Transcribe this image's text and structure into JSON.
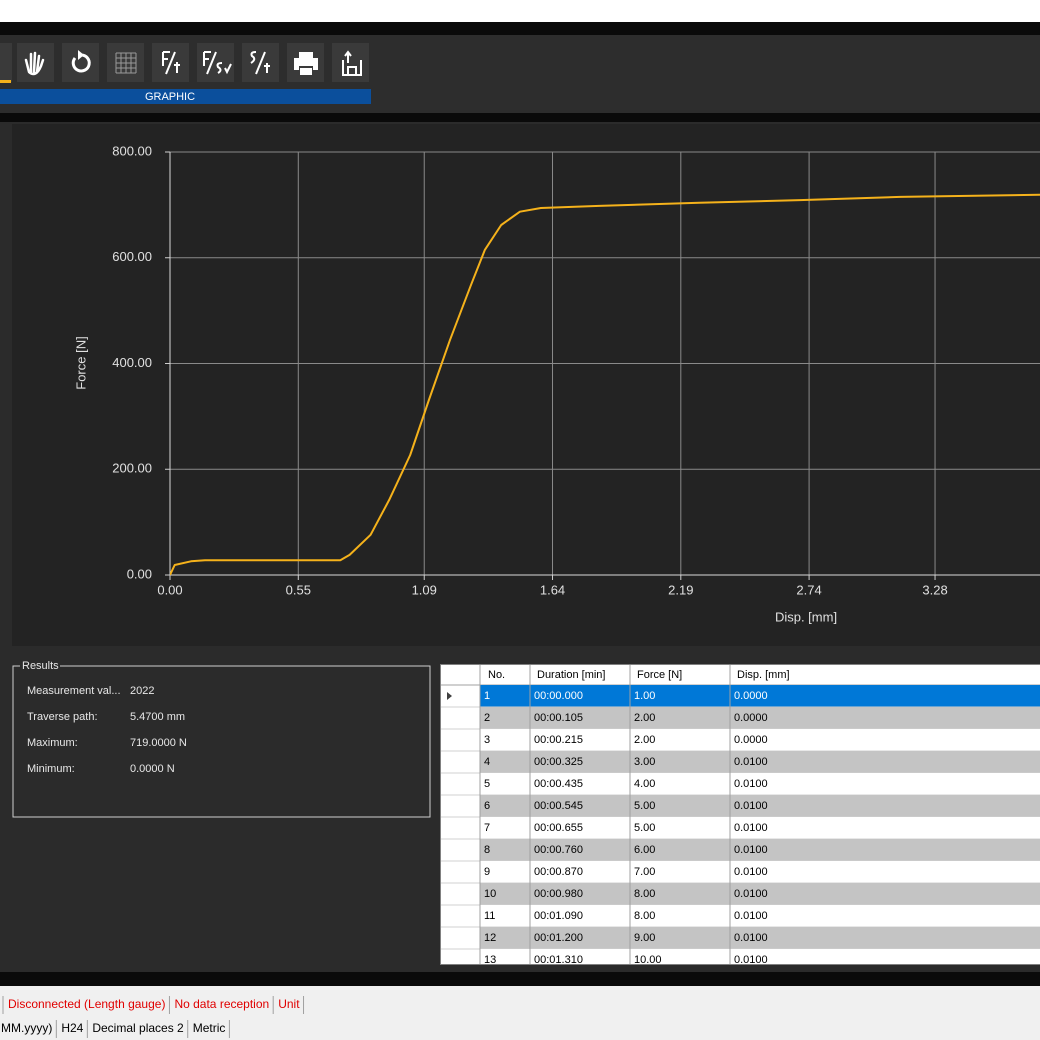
{
  "toolbar": {
    "section": "GRAPHIC"
  },
  "chart_data": {
    "type": "line",
    "x_label": "Disp. [mm]",
    "y_label": "Force [N]",
    "x": [
      0,
      0.02,
      0.09,
      0.15,
      0.73,
      0.77,
      0.86,
      0.94,
      1.03,
      1.11,
      1.2,
      1.29,
      1.35,
      1.42,
      1.5,
      1.59,
      1.84,
      2.27,
      2.7,
      3.13,
      3.73
    ],
    "series": [
      {
        "color": "#f5b21b",
        "values": [
          0,
          19,
          26,
          28,
          28,
          38,
          76,
          142,
          227,
          331,
          444,
          548,
          615,
          662,
          687,
          694,
          698,
          704,
          709,
          715,
          719
        ]
      }
    ],
    "xlim": [
      0,
      3.73
    ],
    "ylim": [
      0,
      800
    ],
    "xticks": [
      {
        "value": 0,
        "label": "0.00"
      },
      0.55,
      1.09,
      1.64,
      2.19,
      2.74,
      3.28
    ],
    "yticks": [
      {
        "value": 0,
        "label": "0.00"
      },
      {
        "value": 200,
        "label": "200.00"
      },
      {
        "value": 400,
        "label": "400.00"
      },
      {
        "value": 600,
        "label": "600.00"
      },
      {
        "value": 800,
        "label": "800.00"
      }
    ],
    "grid": true
  },
  "results": {
    "title": "Results",
    "rows": [
      {
        "label": "Measurement val...",
        "value": "2022"
      },
      {
        "label": "Traverse path:",
        "value": "5.4700 mm"
      },
      {
        "label": "Maximum:",
        "value": "719.0000 N"
      },
      {
        "label": "Minimum:",
        "value": "0.0000 N"
      }
    ]
  },
  "table": {
    "columns": [
      "No.",
      "Duration [min]",
      "Force [N]",
      "Disp. [mm]"
    ],
    "rows": [
      [
        "1",
        "00:00.000",
        "1.00",
        "0.0000"
      ],
      [
        "2",
        "00:00.105",
        "2.00",
        "0.0000"
      ],
      [
        "3",
        "00:00.215",
        "2.00",
        "0.0000"
      ],
      [
        "4",
        "00:00.325",
        "3.00",
        "0.0100"
      ],
      [
        "5",
        "00:00.435",
        "4.00",
        "0.0100"
      ],
      [
        "6",
        "00:00.545",
        "5.00",
        "0.0100"
      ],
      [
        "7",
        "00:00.655",
        "5.00",
        "0.0100"
      ],
      [
        "8",
        "00:00.760",
        "6.00",
        "0.0100"
      ],
      [
        "9",
        "00:00.870",
        "7.00",
        "0.0100"
      ],
      [
        "10",
        "00:00.980",
        "8.00",
        "0.0100"
      ],
      [
        "11",
        "00:01.090",
        "8.00",
        "0.0100"
      ],
      [
        "12",
        "00:01.200",
        "9.00",
        "0.0100"
      ],
      [
        "13",
        "00:01.310",
        "10.00",
        "0.0100"
      ]
    ]
  },
  "status_bar": {
    "line1": [
      "Disconnected (Length gauge)",
      "No data reception",
      "Unit"
    ],
    "line2": [
      "MM.yyyy)",
      "H24",
      "Decimal places 2",
      "Metric"
    ]
  }
}
